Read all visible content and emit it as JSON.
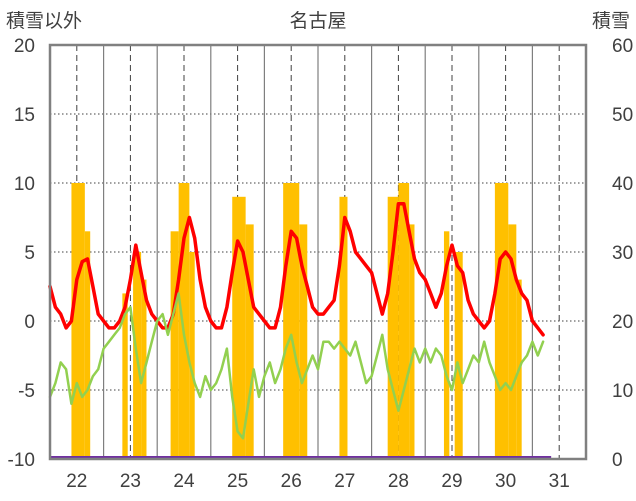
{
  "chart_data": {
    "type": "bar+line",
    "title": "名古屋",
    "y_left_label": "積雪以外",
    "y_right_label": "積雪",
    "y_left_ticks": [
      "20",
      "15",
      "10",
      "5",
      "0",
      "-5",
      "-10"
    ],
    "y_right_ticks": [
      "60",
      "50",
      "40",
      "30",
      "20",
      "10",
      "0"
    ],
    "x_ticks": [
      "22",
      "23",
      "24",
      "25",
      "26",
      "27",
      "28",
      "29",
      "30",
      "31"
    ],
    "ylim_left": [
      -10,
      20
    ],
    "ylim_right": [
      0,
      60
    ],
    "xlim": [
      21.5,
      31.5
    ],
    "grid": "dashed vertical at day marks, dotted horizontal",
    "colors": {
      "bars": "#ffc000",
      "red_line": "#ff0000",
      "green_line": "#92d050",
      "zero_bar": "#7030a0",
      "frame": "#808080",
      "grid": "#404040"
    },
    "bars_ranges": [
      [
        21.9,
        22.15,
        40
      ],
      [
        22.15,
        22.25,
        33
      ],
      [
        22.85,
        22.95,
        24
      ],
      [
        23.05,
        23.2,
        30
      ],
      [
        23.2,
        23.3,
        26
      ],
      [
        23.75,
        23.9,
        33
      ],
      [
        23.9,
        24.1,
        40
      ],
      [
        24.1,
        24.2,
        30
      ],
      [
        24.9,
        25.15,
        38
      ],
      [
        25.15,
        25.3,
        34
      ],
      [
        25.85,
        26.15,
        40
      ],
      [
        26.15,
        26.3,
        34
      ],
      [
        26.9,
        27.05,
        38
      ],
      [
        27.8,
        28.0,
        38
      ],
      [
        28.0,
        28.2,
        40
      ],
      [
        28.2,
        28.3,
        34
      ],
      [
        28.85,
        28.95,
        33
      ],
      [
        29.05,
        29.2,
        30
      ],
      [
        29.8,
        30.05,
        40
      ],
      [
        30.05,
        30.2,
        34
      ],
      [
        30.2,
        30.3,
        26
      ]
    ],
    "series": [
      {
        "name": "",
        "axis": "left",
        "color": "#ff0000",
        "x": [
          21.5,
          21.6,
          21.7,
          21.8,
          21.9,
          22.0,
          22.1,
          22.2,
          22.3,
          22.4,
          22.5,
          22.6,
          22.7,
          22.8,
          22.9,
          23.0,
          23.1,
          23.2,
          23.3,
          23.4,
          23.5,
          23.6,
          23.7,
          23.8,
          23.9,
          24.0,
          24.1,
          24.2,
          24.3,
          24.4,
          24.5,
          24.6,
          24.7,
          24.8,
          24.9,
          25.0,
          25.1,
          25.2,
          25.3,
          25.4,
          25.5,
          25.6,
          25.7,
          25.8,
          25.9,
          26.0,
          26.1,
          26.2,
          26.3,
          26.4,
          26.5,
          26.6,
          26.7,
          26.8,
          26.9,
          27.0,
          27.1,
          27.2,
          27.3,
          27.4,
          27.5,
          27.6,
          27.7,
          27.8,
          27.9,
          28.0,
          28.1,
          28.2,
          28.3,
          28.4,
          28.5,
          28.6,
          28.7,
          28.8,
          28.9,
          29.0,
          29.1,
          29.2,
          29.3,
          29.4,
          29.5,
          29.6,
          29.7,
          29.8,
          29.9,
          30.0,
          30.1,
          30.2,
          30.3,
          30.4,
          30.5,
          30.6,
          30.7
        ],
        "values": [
          2.5,
          1.0,
          0.5,
          -0.5,
          0.0,
          3.0,
          4.3,
          4.5,
          2.5,
          0.5,
          0.0,
          -0.5,
          -0.5,
          0.0,
          1.0,
          3.0,
          5.5,
          3.5,
          1.5,
          0.5,
          0.0,
          -0.5,
          -0.5,
          0.5,
          3.0,
          6.0,
          7.5,
          6.0,
          3.0,
          1.0,
          0.0,
          -0.5,
          -0.5,
          1.0,
          3.5,
          5.8,
          5.0,
          3.0,
          1.0,
          0.5,
          0.0,
          -0.5,
          -0.5,
          1.0,
          4.0,
          6.5,
          6.0,
          4.0,
          2.5,
          1.0,
          0.5,
          0.5,
          1.0,
          1.5,
          4.0,
          7.5,
          6.5,
          5.0,
          4.5,
          4.0,
          3.5,
          2.0,
          0.5,
          2.0,
          5.0,
          8.5,
          8.5,
          6.5,
          4.5,
          3.5,
          3.0,
          2.0,
          1.0,
          2.0,
          4.0,
          5.5,
          4.0,
          3.5,
          1.5,
          0.5,
          0.0,
          -0.5,
          0.0,
          2.0,
          4.5,
          5.0,
          4.5,
          3.0,
          2.0,
          1.5,
          0.0,
          -0.5,
          -1.0
        ]
      },
      {
        "name": "",
        "axis": "left",
        "color": "#92d050",
        "x": [
          21.5,
          21.6,
          21.7,
          21.8,
          21.9,
          22.0,
          22.1,
          22.2,
          22.3,
          22.4,
          22.5,
          22.6,
          22.7,
          22.8,
          22.9,
          23.0,
          23.1,
          23.2,
          23.3,
          23.4,
          23.5,
          23.6,
          23.7,
          23.8,
          23.9,
          24.0,
          24.1,
          24.2,
          24.3,
          24.4,
          24.5,
          24.6,
          24.7,
          24.8,
          24.9,
          25.0,
          25.1,
          25.2,
          25.3,
          25.4,
          25.5,
          25.6,
          25.7,
          25.8,
          25.9,
          26.0,
          26.1,
          26.2,
          26.3,
          26.4,
          26.5,
          26.6,
          26.7,
          26.8,
          26.9,
          27.0,
          27.1,
          27.2,
          27.3,
          27.4,
          27.5,
          27.6,
          27.7,
          27.8,
          27.9,
          28.0,
          28.1,
          28.2,
          28.3,
          28.4,
          28.5,
          28.6,
          28.7,
          28.8,
          28.9,
          29.0,
          29.1,
          29.2,
          29.3,
          29.4,
          29.5,
          29.6,
          29.7,
          29.8,
          29.9,
          30.0,
          30.1,
          30.2,
          30.3,
          30.4,
          30.5,
          30.6,
          30.7
        ],
        "values": [
          -5.5,
          -4.5,
          -3.0,
          -3.5,
          -6.0,
          -4.5,
          -5.5,
          -5.0,
          -4.0,
          -3.5,
          -2.0,
          -1.5,
          -1.0,
          -0.5,
          0.5,
          1.0,
          -2.0,
          -4.5,
          -3.0,
          -1.5,
          0.0,
          0.5,
          -1.0,
          0.5,
          2.0,
          -1.0,
          -3.0,
          -4.5,
          -5.5,
          -4.0,
          -5.0,
          -4.5,
          -3.5,
          -2.0,
          -5.5,
          -8.0,
          -8.5,
          -6.0,
          -3.5,
          -5.5,
          -4.0,
          -3.0,
          -4.5,
          -3.5,
          -2.0,
          -1.0,
          -3.0,
          -4.5,
          -3.5,
          -2.5,
          -3.5,
          -1.5,
          -1.5,
          -2.0,
          -1.5,
          -2.0,
          -2.5,
          -1.5,
          -3.0,
          -4.5,
          -4.0,
          -2.5,
          -1.0,
          -3.5,
          -5.0,
          -6.5,
          -5.0,
          -3.5,
          -2.0,
          -3.0,
          -2.0,
          -3.0,
          -2.0,
          -2.5,
          -4.0,
          -5.0,
          -3.0,
          -4.5,
          -3.5,
          -2.5,
          -3.0,
          -1.5,
          -3.0,
          -4.0,
          -5.0,
          -4.5,
          -5.0,
          -4.0,
          -3.0,
          -2.5,
          -1.5,
          -2.5,
          -1.5
        ]
      }
    ]
  }
}
